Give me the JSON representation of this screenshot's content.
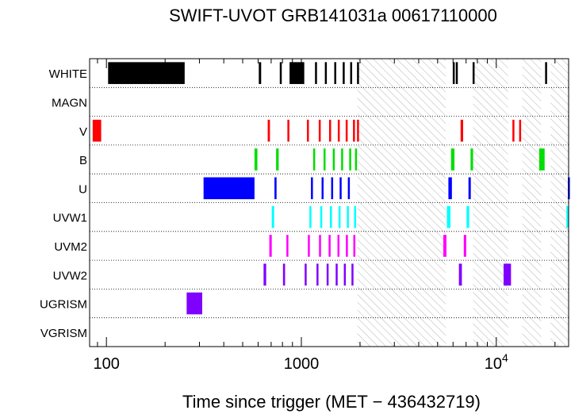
{
  "chart_data": {
    "type": "timeline",
    "title": "SWIFT-UVOT GRB141031a 00617110000",
    "xlabel": "Time since trigger (MET − 436432719)",
    "ylabel": "",
    "xscale": "log",
    "xlim": [
      82,
      23500
    ],
    "x_ticks": [
      {
        "value": 100,
        "label": "100"
      },
      {
        "value": 1000,
        "label": "1000"
      },
      {
        "value": 10000,
        "label": "10",
        "exponent": "4"
      }
    ],
    "grid": "dotted horizontal row separators",
    "filters": [
      "WHITE",
      "MAGN",
      "V",
      "B",
      "U",
      "UVW1",
      "UVM2",
      "UVW2",
      "UGRISM",
      "VGRISM"
    ],
    "colors": {
      "WHITE": "#000000",
      "MAGN": "#000000",
      "V": "#ff0000",
      "B": "#00dd00",
      "U": "#0000ff",
      "UVW1": "#00ffff",
      "UVM2": "#ff00ff",
      "UVW2": "#8000ff",
      "UGRISM": "#8000ff",
      "VGRISM": "#8000ff",
      "hatch": "#b0b0b0"
    },
    "hatched_intervals": [
      [
        1940,
        5500
      ],
      [
        7600,
        11500
      ],
      [
        13600,
        17000
      ],
      [
        19000,
        23500
      ]
    ],
    "exposures": {
      "WHITE": [
        [
          102,
          252
        ],
        [
          605,
          622
        ],
        [
          775,
          790
        ],
        [
          870,
          1035
        ],
        [
          1175,
          1190
        ],
        [
          1320,
          1335
        ],
        [
          1475,
          1488
        ],
        [
          1630,
          1643
        ],
        [
          1780,
          1793
        ],
        [
          1930,
          1945
        ],
        [
          5980,
          6000
        ],
        [
          6200,
          6330
        ],
        [
          7560,
          7580
        ],
        [
          17800,
          17900
        ]
      ],
      "MAGN": [],
      "V": [
        [
          85,
          94
        ],
        [
          672,
          690
        ],
        [
          848,
          868
        ],
        [
          1068,
          1083
        ],
        [
          1228,
          1248
        ],
        [
          1388,
          1403
        ],
        [
          1538,
          1553
        ],
        [
          1688,
          1703
        ],
        [
          1840,
          1855
        ],
        [
          1930,
          1942
        ],
        [
          6560,
          6760
        ],
        [
          12100,
          12300
        ],
        [
          13100,
          13330
        ]
      ],
      "B": [
        [
          575,
          595
        ],
        [
          742,
          765
        ],
        [
          1150,
          1168
        ],
        [
          1300,
          1318
        ],
        [
          1450,
          1468
        ],
        [
          1600,
          1618
        ],
        [
          1760,
          1778
        ],
        [
          1885,
          1900
        ],
        [
          5860,
          6100
        ],
        [
          7380,
          7600
        ],
        [
          16600,
          17700
        ]
      ],
      "U": [
        [
          315,
          575
        ],
        [
          728,
          746
        ],
        [
          1120,
          1135
        ],
        [
          1270,
          1288
        ],
        [
          1422,
          1440
        ],
        [
          1572,
          1590
        ],
        [
          1732,
          1750
        ],
        [
          5680,
          5920
        ],
        [
          7200,
          7400
        ],
        [
          23300,
          23500
        ]
      ],
      "UVW1": [
        [
          705,
          725
        ],
        [
          1100,
          1118
        ],
        [
          1250,
          1268
        ],
        [
          1402,
          1420
        ],
        [
          1552,
          1570
        ],
        [
          1712,
          1730
        ],
        [
          1865,
          1880
        ],
        [
          5580,
          5820
        ],
        [
          7040,
          7260
        ],
        [
          22900,
          23500
        ]
      ],
      "UVM2": [
        [
          685,
          705
        ],
        [
          838,
          858
        ],
        [
          1080,
          1100
        ],
        [
          1232,
          1250
        ],
        [
          1380,
          1402
        ],
        [
          1532,
          1552
        ],
        [
          1692,
          1712
        ],
        [
          1848,
          1868
        ],
        [
          5350,
          5550
        ],
        [
          6810,
          7010
        ]
      ],
      "UVW2": [
        [
          640,
          660
        ],
        [
          805,
          825
        ],
        [
          1040,
          1060
        ],
        [
          1196,
          1214
        ],
        [
          1348,
          1366
        ],
        [
          1500,
          1518
        ],
        [
          1652,
          1670
        ],
        [
          1808,
          1826
        ],
        [
          6430,
          6660
        ],
        [
          10900,
          11900
        ]
      ],
      "UGRISM": [
        [
          258,
          310
        ]
      ],
      "VGRISM": []
    }
  }
}
